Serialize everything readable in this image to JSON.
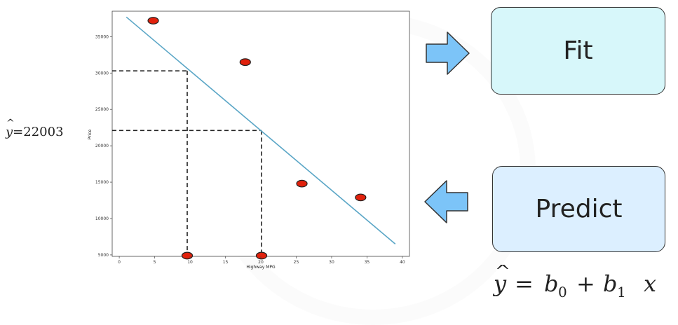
{
  "left_annotation": {
    "prefix": "y",
    "text": "=22003"
  },
  "boxes": {
    "fit_label": "Fit",
    "predict_label": "Predict"
  },
  "formula": {
    "y": "y",
    "eq": "=",
    "b0": "b",
    "sub0": "0",
    "plus": "+",
    "b1": "b",
    "sub1": "1",
    "x": "x"
  },
  "colors": {
    "fit_box": "#d7f7fa",
    "predict_box": "#dcefff",
    "arrow": "#7cc4f8",
    "line": "#5aa6c6",
    "points": "#e1210c"
  },
  "icons": {
    "right_arrow": "right-arrow-icon",
    "left_arrow": "left-arrow-icon"
  },
  "chart_data": {
    "type": "scatter",
    "xlabel": "Highway MPG",
    "ylabel": "Price",
    "xlim": [
      -1,
      41
    ],
    "ylim": [
      4800,
      38500
    ],
    "x_ticks": [
      0,
      5,
      10,
      15,
      20,
      25,
      30,
      35,
      40
    ],
    "y_ticks": [
      5000,
      10000,
      15000,
      20000,
      25000,
      30000,
      35000
    ],
    "points": [
      {
        "x": 4.8,
        "y": 37200
      },
      {
        "x": 17.8,
        "y": 31500
      },
      {
        "x": 25.8,
        "y": 14800
      },
      {
        "x": 34.1,
        "y": 12900
      },
      {
        "x": 9.6,
        "y": 4900
      },
      {
        "x": 20.1,
        "y": 4900
      }
    ],
    "regression_line": {
      "x": [
        1,
        39
      ],
      "y": [
        37700,
        6500
      ]
    },
    "guides": [
      {
        "x": 9.6,
        "y": 30300
      },
      {
        "x": 20.1,
        "y": 22100
      }
    ],
    "grid": false
  }
}
